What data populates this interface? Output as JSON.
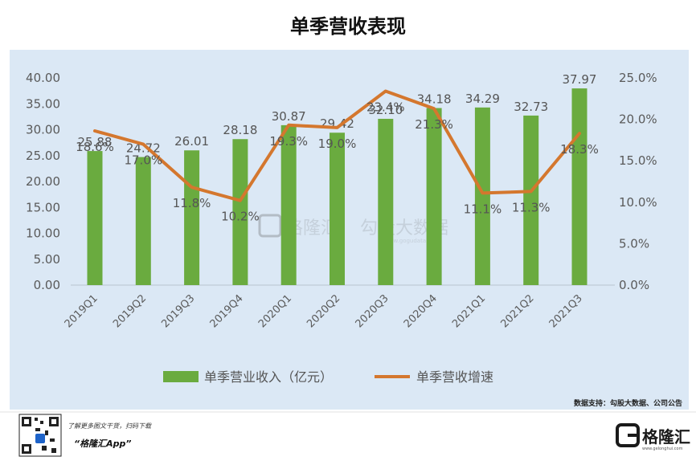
{
  "colors": {
    "bar": "#6aab3f",
    "line": "#d4772e",
    "plot_bg": "#dbe8f5",
    "grid": "#c8d6e4"
  },
  "chart_data": {
    "type": "bar",
    "title": "单季营收表现",
    "categories": [
      "2019Q1",
      "2019Q2",
      "2019Q3",
      "2019Q4",
      "2020Q1",
      "2020Q2",
      "2020Q3",
      "2020Q4",
      "2021Q1",
      "2021Q2",
      "2021Q3"
    ],
    "series": [
      {
        "name": "单季营业收入（亿元）",
        "type": "bar",
        "axis": "left",
        "values": [
          25.88,
          24.72,
          26.01,
          28.18,
          30.87,
          29.42,
          32.1,
          34.18,
          34.29,
          32.73,
          37.97
        ],
        "labels": [
          "25.88",
          "24.72",
          "26.01",
          "28.18",
          "30.87",
          "29.42",
          "32.10",
          "34.18",
          "34.29",
          "32.73",
          "37.97"
        ]
      },
      {
        "name": "单季营收增速",
        "type": "line",
        "axis": "right",
        "values": [
          18.6,
          17.0,
          11.8,
          10.2,
          19.3,
          19.0,
          23.4,
          21.3,
          11.1,
          11.3,
          18.3
        ],
        "labels": [
          "18.6%",
          "17.0%",
          "11.8%",
          "10.2%",
          "19.3%",
          "19.0%",
          "23.4%",
          "21.3%",
          "11.1%",
          "11.3%",
          "18.3%"
        ]
      }
    ],
    "y_left": {
      "ylim": [
        0,
        40
      ],
      "ticks": [
        "0.00",
        "5.00",
        "10.00",
        "15.00",
        "20.00",
        "25.00",
        "30.00",
        "35.00",
        "40.00"
      ]
    },
    "y_right": {
      "ylim": [
        0,
        25
      ],
      "ticks": [
        "0.0%",
        "5.0%",
        "10.0%",
        "15.0%",
        "20.0%",
        "25.0%"
      ]
    },
    "legend_position": "bottom",
    "grid": false
  },
  "watermark": {
    "brand": "格隆汇",
    "site": "勾股大数据",
    "site_url": "www.gogudata.com"
  },
  "source_note": "数据支持：勾股大数据、公司公告",
  "footer": {
    "prompt": "了解更多图文干货，扫码下载",
    "app": "“格隆汇App”",
    "logo_text": "格隆汇",
    "logo_url": "www.gelonghui.com"
  }
}
